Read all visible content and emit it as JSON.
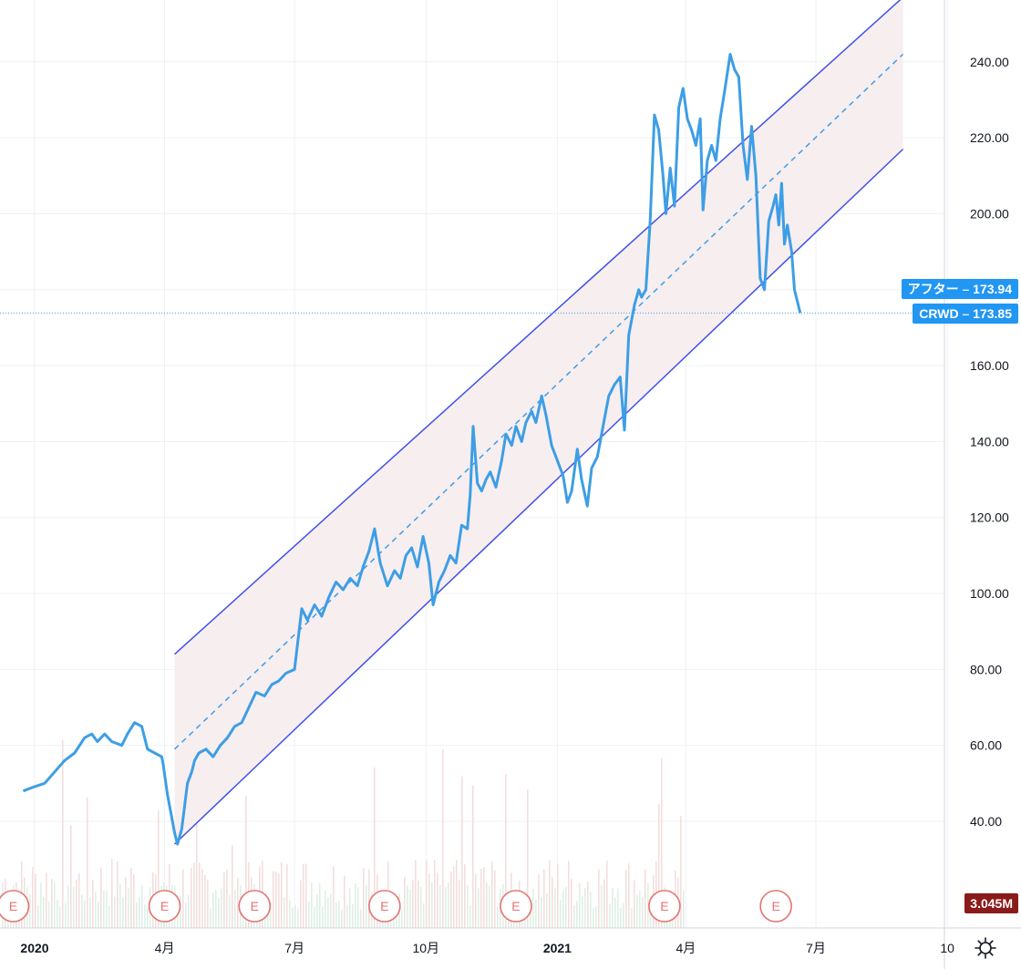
{
  "chart_data": {
    "type": "line",
    "symbol": "CRWD",
    "y_axis_ticks": [
      "40.00",
      "60.00",
      "80.00",
      "100.00",
      "120.00",
      "140.00",
      "160.00",
      "180.00",
      "200.00",
      "220.00",
      "240.00"
    ],
    "y_tick_values": [
      40,
      60,
      80,
      100,
      120,
      140,
      160,
      180,
      200,
      220,
      240
    ],
    "x_axis_ticks": [
      {
        "label": "2020",
        "date": "2020-01-01",
        "bold": true
      },
      {
        "label": "4月",
        "date": "2020-04-01",
        "bold": false
      },
      {
        "label": "7月",
        "date": "2020-07-01",
        "bold": false
      },
      {
        "label": "10月",
        "date": "2020-10-01",
        "bold": false
      },
      {
        "label": "2021",
        "date": "2021-01-01",
        "bold": true
      },
      {
        "label": "4月",
        "date": "2021-04-01",
        "bold": false
      },
      {
        "label": "7月",
        "date": "2021-07-01",
        "bold": false
      },
      {
        "label": "10",
        "date": "2021-10-01",
        "bold": false
      }
    ],
    "price_series": {
      "color": "#3d9ee5",
      "points": [
        [
          "2019-12-24",
          48
        ],
        [
          "2019-12-31",
          49
        ],
        [
          "2020-01-08",
          50
        ],
        [
          "2020-01-15",
          53
        ],
        [
          "2020-01-22",
          56
        ],
        [
          "2020-01-29",
          58
        ],
        [
          "2020-02-05",
          62
        ],
        [
          "2020-02-10",
          63
        ],
        [
          "2020-02-14",
          61
        ],
        [
          "2020-02-19",
          63
        ],
        [
          "2020-02-24",
          61
        ],
        [
          "2020-03-02",
          60
        ],
        [
          "2020-03-06",
          63
        ],
        [
          "2020-03-11",
          66
        ],
        [
          "2020-03-16",
          65
        ],
        [
          "2020-03-20",
          59
        ],
        [
          "2020-03-25",
          58
        ],
        [
          "2020-03-30",
          57
        ],
        [
          "2020-03-31",
          55
        ],
        [
          "2020-04-03",
          47
        ],
        [
          "2020-04-06",
          41
        ],
        [
          "2020-04-08",
          37
        ],
        [
          "2020-04-10",
          34
        ],
        [
          "2020-04-13",
          38
        ],
        [
          "2020-04-15",
          44
        ],
        [
          "2020-04-17",
          50
        ],
        [
          "2020-04-20",
          53
        ],
        [
          "2020-04-22",
          56
        ],
        [
          "2020-04-25",
          58
        ],
        [
          "2020-04-30",
          59
        ],
        [
          "2020-05-05",
          57
        ],
        [
          "2020-05-10",
          60
        ],
        [
          "2020-05-15",
          62
        ],
        [
          "2020-05-20",
          65
        ],
        [
          "2020-05-25",
          66
        ],
        [
          "2020-05-30",
          70
        ],
        [
          "2020-06-04",
          74
        ],
        [
          "2020-06-10",
          73
        ],
        [
          "2020-06-15",
          76
        ],
        [
          "2020-06-20",
          77
        ],
        [
          "2020-06-25",
          79
        ],
        [
          "2020-07-01",
          80
        ],
        [
          "2020-07-06",
          96
        ],
        [
          "2020-07-10",
          93
        ],
        [
          "2020-07-15",
          97
        ],
        [
          "2020-07-20",
          94
        ],
        [
          "2020-07-25",
          99
        ],
        [
          "2020-07-30",
          103
        ],
        [
          "2020-08-04",
          101
        ],
        [
          "2020-08-09",
          104
        ],
        [
          "2020-08-14",
          102
        ],
        [
          "2020-08-18",
          107
        ],
        [
          "2020-08-22",
          111
        ],
        [
          "2020-08-26",
          117
        ],
        [
          "2020-08-30",
          108
        ],
        [
          "2020-09-04",
          102
        ],
        [
          "2020-09-09",
          106
        ],
        [
          "2020-09-13",
          104
        ],
        [
          "2020-09-17",
          110
        ],
        [
          "2020-09-21",
          112
        ],
        [
          "2020-09-25",
          107
        ],
        [
          "2020-09-29",
          115
        ],
        [
          "2020-10-03",
          108
        ],
        [
          "2020-10-06",
          97
        ],
        [
          "2020-10-10",
          103
        ],
        [
          "2020-10-14",
          106
        ],
        [
          "2020-10-18",
          110
        ],
        [
          "2020-10-22",
          108
        ],
        [
          "2020-10-26",
          118
        ],
        [
          "2020-10-30",
          117
        ],
        [
          "2020-11-01",
          126
        ],
        [
          "2020-11-03",
          144
        ],
        [
          "2020-11-06",
          129
        ],
        [
          "2020-11-09",
          127
        ],
        [
          "2020-11-12",
          130
        ],
        [
          "2020-11-15",
          132
        ],
        [
          "2020-11-19",
          128
        ],
        [
          "2020-11-23",
          135
        ],
        [
          "2020-11-26",
          142
        ],
        [
          "2020-11-30",
          139
        ],
        [
          "2020-12-03",
          144
        ],
        [
          "2020-12-07",
          140
        ],
        [
          "2020-12-10",
          145
        ],
        [
          "2020-12-14",
          148
        ],
        [
          "2020-12-17",
          145
        ],
        [
          "2020-12-21",
          152
        ],
        [
          "2020-12-24",
          147
        ],
        [
          "2020-12-28",
          139
        ],
        [
          "2021-01-01",
          135
        ],
        [
          "2021-01-05",
          131
        ],
        [
          "2021-01-08",
          124
        ],
        [
          "2021-01-11",
          127
        ],
        [
          "2021-01-15",
          138
        ],
        [
          "2021-01-18",
          130
        ],
        [
          "2021-01-22",
          123
        ],
        [
          "2021-01-25",
          133
        ],
        [
          "2021-01-29",
          136
        ],
        [
          "2021-02-02",
          144
        ],
        [
          "2021-02-06",
          152
        ],
        [
          "2021-02-10",
          155
        ],
        [
          "2021-02-14",
          157
        ],
        [
          "2021-02-17",
          143
        ],
        [
          "2021-02-20",
          168
        ],
        [
          "2021-02-24",
          176
        ],
        [
          "2021-02-27",
          180
        ],
        [
          "2021-03-01",
          178
        ],
        [
          "2021-03-04",
          180
        ],
        [
          "2021-03-07",
          198
        ],
        [
          "2021-03-10",
          226
        ],
        [
          "2021-03-13",
          222
        ],
        [
          "2021-03-16",
          210
        ],
        [
          "2021-03-18",
          200
        ],
        [
          "2021-03-21",
          212
        ],
        [
          "2021-03-24",
          202
        ],
        [
          "2021-03-27",
          228
        ],
        [
          "2021-03-30",
          233
        ],
        [
          "2021-04-02",
          225
        ],
        [
          "2021-04-05",
          222
        ],
        [
          "2021-04-08",
          218
        ],
        [
          "2021-04-11",
          225
        ],
        [
          "2021-04-13",
          201
        ],
        [
          "2021-04-16",
          214
        ],
        [
          "2021-04-19",
          218
        ],
        [
          "2021-04-22",
          214
        ],
        [
          "2021-04-25",
          225
        ],
        [
          "2021-04-28",
          232
        ],
        [
          "2021-05-02",
          242
        ],
        [
          "2021-05-05",
          238
        ],
        [
          "2021-05-08",
          236
        ],
        [
          "2021-05-11",
          218
        ],
        [
          "2021-05-14",
          209
        ],
        [
          "2021-05-17",
          223
        ],
        [
          "2021-05-20",
          210
        ],
        [
          "2021-05-23",
          183
        ],
        [
          "2021-05-26",
          180
        ],
        [
          "2021-05-29",
          198
        ],
        [
          "2021-06-01",
          202
        ],
        [
          "2021-06-03",
          205
        ],
        [
          "2021-06-05",
          197
        ],
        [
          "2021-06-07",
          208
        ],
        [
          "2021-06-09",
          192
        ],
        [
          "2021-06-11",
          197
        ],
        [
          "2021-06-14",
          190
        ],
        [
          "2021-06-16",
          180
        ],
        [
          "2021-06-18",
          177
        ],
        [
          "2021-06-20",
          173.85
        ]
      ]
    },
    "channel": {
      "start_date": "2020-04-08",
      "end_date": "2021-08-31",
      "upper": [
        84,
        257
      ],
      "middle": [
        59,
        242
      ],
      "lower": [
        34,
        217
      ],
      "line_color": "#3f51e8",
      "mid_color": "#3d9ee5",
      "fill_color": "#f7eef0"
    },
    "last_price_line": {
      "value": 173.85,
      "color": "#3d9ee5"
    },
    "earnings_markers": {
      "label": "E",
      "dates": [
        "2019-12-17",
        "2020-04-01",
        "2020-06-03",
        "2020-09-02",
        "2020-12-03",
        "2021-03-17",
        "2021-06-03"
      ]
    },
    "volume": {
      "last_label": "3.045M"
    },
    "tags": {
      "after_hours": {
        "name": "アフター",
        "value": "173.94"
      },
      "last": {
        "name": "CRWD",
        "value": "173.85"
      }
    }
  }
}
